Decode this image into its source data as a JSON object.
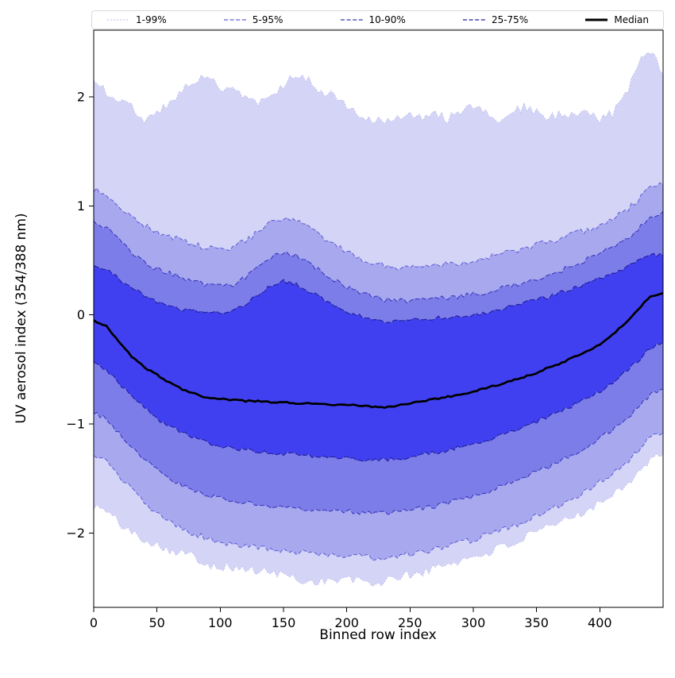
{
  "figure": {
    "background": "#ffffff"
  },
  "chart_data": {
    "type": "area",
    "title": "",
    "xlabel": "Binned row index",
    "ylabel": "UV aerosol index (354/388 nm)",
    "xlim": [
      0,
      450
    ],
    "ylim": [
      -2.68,
      2.61
    ],
    "xticks": [
      0,
      50,
      100,
      150,
      200,
      250,
      300,
      350,
      400
    ],
    "yticks": [
      -2,
      -1,
      0,
      1,
      2
    ],
    "grid": false,
    "legend_position": "top",
    "x": [
      0,
      10,
      20,
      30,
      40,
      50,
      60,
      70,
      80,
      90,
      100,
      110,
      120,
      130,
      140,
      150,
      160,
      170,
      180,
      190,
      200,
      210,
      220,
      230,
      240,
      250,
      260,
      270,
      280,
      290,
      300,
      310,
      320,
      330,
      340,
      350,
      360,
      370,
      380,
      390,
      400,
      410,
      420,
      430,
      440,
      450
    ],
    "bands": [
      {
        "label": "1-99%",
        "fill": "#d4d4f6",
        "edge": "#b9b9ef",
        "lower": [
          -1.75,
          -1.8,
          -1.9,
          -2.0,
          -2.05,
          -2.1,
          -2.15,
          -2.18,
          -2.22,
          -2.28,
          -2.3,
          -2.32,
          -2.33,
          -2.35,
          -2.36,
          -2.38,
          -2.42,
          -2.45,
          -2.43,
          -2.44,
          -2.42,
          -2.44,
          -2.46,
          -2.45,
          -2.4,
          -2.38,
          -2.36,
          -2.32,
          -2.28,
          -2.25,
          -2.22,
          -2.18,
          -2.14,
          -2.1,
          -2.05,
          -2.0,
          -1.95,
          -1.9,
          -1.84,
          -1.78,
          -1.72,
          -1.64,
          -1.55,
          -1.45,
          -1.32,
          -1.28
        ],
        "upper": [
          2.15,
          2.05,
          1.95,
          1.9,
          1.8,
          1.85,
          1.95,
          2.05,
          2.15,
          2.2,
          2.1,
          2.05,
          2.0,
          1.95,
          2.0,
          2.1,
          2.22,
          2.15,
          2.05,
          2.0,
          1.9,
          1.85,
          1.8,
          1.75,
          1.8,
          1.82,
          1.8,
          1.85,
          1.8,
          1.85,
          1.9,
          1.85,
          1.8,
          1.85,
          1.9,
          1.85,
          1.8,
          1.85,
          1.8,
          1.85,
          1.8,
          1.85,
          2.0,
          2.3,
          2.42,
          2.2
        ]
      },
      {
        "label": "5-95%",
        "fill": "#a8a8ef",
        "edge": "#5c5cd6",
        "lower": [
          -1.3,
          -1.35,
          -1.48,
          -1.6,
          -1.72,
          -1.82,
          -1.9,
          -1.96,
          -2.01,
          -2.05,
          -2.08,
          -2.1,
          -2.12,
          -2.14,
          -2.15,
          -2.16,
          -2.17,
          -2.18,
          -2.19,
          -2.2,
          -2.2,
          -2.21,
          -2.22,
          -2.22,
          -2.21,
          -2.19,
          -2.17,
          -2.15,
          -2.12,
          -2.09,
          -2.06,
          -2.02,
          -1.98,
          -1.94,
          -1.89,
          -1.84,
          -1.79,
          -1.73,
          -1.67,
          -1.6,
          -1.53,
          -1.45,
          -1.36,
          -1.25,
          -1.12,
          -1.08
        ],
        "upper": [
          1.15,
          1.1,
          1.0,
          0.9,
          0.82,
          0.76,
          0.72,
          0.68,
          0.64,
          0.61,
          0.6,
          0.62,
          0.68,
          0.76,
          0.84,
          0.88,
          0.86,
          0.8,
          0.72,
          0.64,
          0.57,
          0.52,
          0.48,
          0.45,
          0.44,
          0.44,
          0.45,
          0.46,
          0.47,
          0.48,
          0.5,
          0.52,
          0.55,
          0.58,
          0.61,
          0.64,
          0.67,
          0.7,
          0.74,
          0.78,
          0.82,
          0.88,
          0.95,
          1.05,
          1.18,
          1.2
        ]
      },
      {
        "label": "10-90%",
        "fill": "#7d7de9",
        "edge": "#3333b8",
        "lower": [
          -0.9,
          -0.95,
          -1.08,
          -1.2,
          -1.32,
          -1.42,
          -1.5,
          -1.56,
          -1.61,
          -1.65,
          -1.68,
          -1.7,
          -1.72,
          -1.74,
          -1.75,
          -1.76,
          -1.77,
          -1.78,
          -1.79,
          -1.8,
          -1.8,
          -1.81,
          -1.82,
          -1.82,
          -1.81,
          -1.79,
          -1.77,
          -1.75,
          -1.72,
          -1.69,
          -1.66,
          -1.62,
          -1.58,
          -1.54,
          -1.49,
          -1.44,
          -1.39,
          -1.33,
          -1.27,
          -1.2,
          -1.13,
          -1.05,
          -0.96,
          -0.85,
          -0.72,
          -0.68
        ],
        "upper": [
          0.85,
          0.8,
          0.68,
          0.57,
          0.48,
          0.42,
          0.38,
          0.34,
          0.3,
          0.27,
          0.26,
          0.28,
          0.34,
          0.43,
          0.52,
          0.57,
          0.55,
          0.48,
          0.4,
          0.32,
          0.26,
          0.21,
          0.17,
          0.14,
          0.13,
          0.13,
          0.14,
          0.15,
          0.16,
          0.17,
          0.19,
          0.21,
          0.24,
          0.27,
          0.3,
          0.33,
          0.37,
          0.41,
          0.46,
          0.51,
          0.56,
          0.62,
          0.69,
          0.78,
          0.9,
          0.95
        ]
      },
      {
        "label": "25-75%",
        "fill": "#4040f0",
        "edge": "#1f1f99",
        "lower": [
          -0.45,
          -0.5,
          -0.62,
          -0.75,
          -0.85,
          -0.95,
          -1.02,
          -1.08,
          -1.13,
          -1.17,
          -1.2,
          -1.22,
          -1.24,
          -1.25,
          -1.26,
          -1.27,
          -1.28,
          -1.29,
          -1.3,
          -1.31,
          -1.31,
          -1.32,
          -1.33,
          -1.33,
          -1.32,
          -1.3,
          -1.28,
          -1.26,
          -1.24,
          -1.21,
          -1.18,
          -1.15,
          -1.11,
          -1.07,
          -1.03,
          -0.98,
          -0.93,
          -0.88,
          -0.82,
          -0.76,
          -0.7,
          -0.62,
          -0.53,
          -0.42,
          -0.3,
          -0.25
        ],
        "upper": [
          0.45,
          0.42,
          0.33,
          0.25,
          0.18,
          0.12,
          0.08,
          0.05,
          0.03,
          0.02,
          0.02,
          0.04,
          0.1,
          0.18,
          0.27,
          0.31,
          0.28,
          0.22,
          0.15,
          0.08,
          0.03,
          -0.01,
          -0.04,
          -0.06,
          -0.06,
          -0.05,
          -0.04,
          -0.03,
          -0.02,
          -0.01,
          0.0,
          0.02,
          0.05,
          0.08,
          0.11,
          0.14,
          0.17,
          0.21,
          0.25,
          0.29,
          0.33,
          0.38,
          0.43,
          0.5,
          0.55,
          0.55
        ]
      }
    ],
    "median": {
      "label": "Median",
      "color": "#000000",
      "values": [
        -0.05,
        -0.1,
        -0.25,
        -0.38,
        -0.48,
        -0.55,
        -0.62,
        -0.68,
        -0.72,
        -0.76,
        -0.77,
        -0.78,
        -0.79,
        -0.79,
        -0.8,
        -0.8,
        -0.81,
        -0.81,
        -0.82,
        -0.83,
        -0.82,
        -0.83,
        -0.84,
        -0.85,
        -0.83,
        -0.81,
        -0.79,
        -0.77,
        -0.75,
        -0.73,
        -0.7,
        -0.67,
        -0.64,
        -0.6,
        -0.57,
        -0.53,
        -0.48,
        -0.44,
        -0.38,
        -0.33,
        -0.27,
        -0.18,
        -0.08,
        0.05,
        0.17,
        0.2
      ]
    }
  }
}
